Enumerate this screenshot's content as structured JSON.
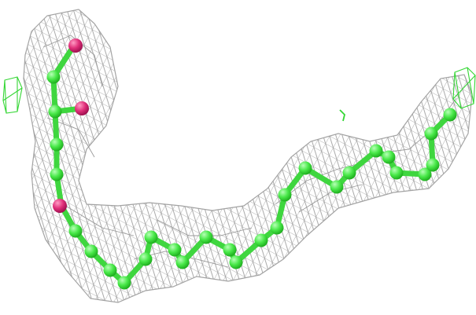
{
  "scene": {
    "subject": "ball-and-stick-molecule-in-electron-density-mesh",
    "background": "#ffffff",
    "colors": {
      "mesh": "#9a9a9a",
      "carbon": "#48e848",
      "carbon_highlight": "#b6ffb6",
      "bond": "#3fd63f",
      "oxygen": "#e0307a",
      "oxygen_highlight": "#ff9cc4",
      "cage_marker": "#34d634"
    }
  }
}
